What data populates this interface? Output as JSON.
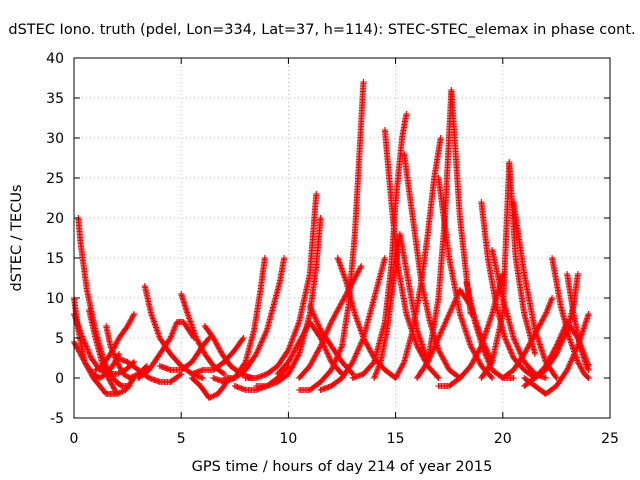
{
  "chart_data": {
    "type": "scatter",
    "title": "dSTEC Iono. truth (pdel, Lon=334, Lat=37, h=114): STEC-STEC_elemax in phase cont.",
    "xlabel": "GPS time / hours of day 214 of year 2015",
    "ylabel": "dSTEC  / TECUs",
    "xlim": [
      0,
      25
    ],
    "ylim": [
      -5,
      40
    ],
    "xticks": [
      0,
      5,
      10,
      15,
      20,
      25
    ],
    "yticks": [
      -5,
      0,
      5,
      10,
      15,
      20,
      25,
      30,
      35,
      40
    ],
    "grid": true,
    "marker": "plus",
    "color": "#ff0000",
    "arcs": [
      {
        "x": [
          0.0,
          0.2,
          0.5,
          0.9,
          1.2,
          1.5,
          1.9
        ],
        "y": [
          10,
          6,
          2,
          0,
          -1,
          -2,
          -2
        ]
      },
      {
        "x": [
          0.0,
          0.3,
          0.6,
          0.9,
          1.2,
          1.5,
          1.8,
          2.1
        ],
        "y": [
          4.5,
          3,
          1.5,
          0.5,
          0,
          0.5,
          1.5,
          3
        ]
      },
      {
        "x": [
          0.2,
          0.3,
          0.6,
          1.0,
          1.4,
          1.8,
          2.2,
          2.6
        ],
        "y": [
          20,
          17,
          11,
          6,
          2,
          0,
          -1,
          -1
        ]
      },
      {
        "x": [
          0.0,
          0.4,
          0.8,
          1.2,
          1.6,
          2.0,
          2.4,
          2.8
        ],
        "y": [
          8,
          5,
          2.5,
          1,
          0.5,
          0.5,
          1,
          2
        ]
      },
      {
        "x": [
          0.7,
          1.0,
          1.3,
          1.6,
          2.0,
          2.4,
          2.8
        ],
        "y": [
          8.5,
          5,
          2,
          0,
          -2,
          -1.5,
          0
        ]
      },
      {
        "x": [
          1.0,
          1.3,
          1.7,
          2.1,
          2.5,
          2.8
        ],
        "y": [
          1,
          1.5,
          3,
          5,
          6.5,
          8
        ]
      },
      {
        "x": [
          1.5,
          1.7,
          2.0,
          2.3,
          2.6,
          3.0,
          3.4
        ],
        "y": [
          6.5,
          4,
          2,
          0.5,
          0,
          0.5,
          1.5
        ]
      },
      {
        "x": [
          2.0,
          2.5,
          3.0,
          3.5,
          4.0,
          4.5,
          5.0
        ],
        "y": [
          2.5,
          2,
          1,
          0,
          -0.5,
          -0.5,
          0.5
        ]
      },
      {
        "x": [
          3.3,
          3.6,
          4.0,
          4.5,
          5.0,
          5.5,
          6.0
        ],
        "y": [
          11.5,
          8,
          5,
          3,
          1.5,
          0.5,
          0
        ]
      },
      {
        "x": [
          3.0,
          3.5,
          4.0,
          4.5,
          4.8,
          5.1,
          5.6
        ],
        "y": [
          0,
          1,
          3,
          5,
          7,
          7,
          5
        ]
      },
      {
        "x": [
          5.0,
          5.3,
          5.7,
          6.1,
          6.5,
          7.0
        ],
        "y": [
          10.5,
          8,
          5,
          3,
          1.5,
          0.5
        ]
      },
      {
        "x": [
          4.0,
          4.5,
          5.0,
          5.5,
          6.0,
          6.3
        ],
        "y": [
          1.5,
          1,
          1,
          2,
          4,
          5
        ]
      },
      {
        "x": [
          5.5,
          5.9,
          6.3,
          6.7,
          7.0,
          7.2
        ],
        "y": [
          0,
          -1,
          -2.5,
          -2,
          -1,
          0
        ]
      },
      {
        "x": [
          6.1,
          6.5,
          6.9,
          7.3,
          7.8,
          8.3
        ],
        "y": [
          6.5,
          5,
          3,
          1.5,
          0.5,
          0
        ]
      },
      {
        "x": [
          5.5,
          6.0,
          6.5,
          7.0,
          7.5,
          7.9
        ],
        "y": [
          0.5,
          1,
          1,
          2,
          3.5,
          5
        ]
      },
      {
        "x": [
          6.5,
          7.0,
          7.5,
          8.0,
          8.4,
          8.7,
          8.9
        ],
        "y": [
          0,
          -0.5,
          0,
          2,
          6,
          11,
          15
        ]
      },
      {
        "x": [
          7.0,
          7.5,
          8.0,
          8.5,
          9.0,
          9.3,
          9.6,
          9.8
        ],
        "y": [
          0,
          0,
          1,
          3,
          6,
          9,
          12,
          15
        ]
      },
      {
        "x": [
          7.5,
          8.0,
          8.5,
          9.0,
          9.5,
          10.0
        ],
        "y": [
          -1,
          -1.5,
          -1.5,
          -1,
          0,
          1.5
        ]
      },
      {
        "x": [
          8.0,
          8.5,
          9.0,
          9.5,
          10.0,
          10.5,
          11.0,
          11.3
        ],
        "y": [
          0,
          0,
          0.5,
          1.5,
          3.5,
          7,
          13,
          23
        ]
      },
      {
        "x": [
          8.5,
          9.0,
          9.5,
          10.0,
          10.5,
          11.0,
          11.3,
          11.5
        ],
        "y": [
          -1,
          -1,
          -0.5,
          0.5,
          3,
          8,
          14,
          20
        ]
      },
      {
        "x": [
          9.5,
          10.0,
          10.5,
          11.0,
          11.5,
          12.0,
          12.5
        ],
        "y": [
          0.5,
          2,
          4.5,
          7,
          5,
          2,
          0.5
        ]
      },
      {
        "x": [
          10.5,
          11.0,
          11.5,
          12.0,
          12.5,
          13.0,
          13.4
        ],
        "y": [
          0,
          1.5,
          4,
          7,
          9.5,
          12,
          14
        ]
      },
      {
        "x": [
          11.0,
          11.5,
          12.0,
          12.5,
          13.0
        ],
        "y": [
          9,
          6,
          4,
          2,
          0.5
        ]
      },
      {
        "x": [
          10.5,
          11.0,
          11.5,
          12.0,
          12.5,
          12.8,
          13.1,
          13.5
        ],
        "y": [
          -1.5,
          -1.5,
          -0.5,
          1,
          4,
          9,
          18,
          37
        ]
      },
      {
        "x": [
          11.5,
          12.0,
          12.5,
          13.0,
          13.5,
          14.0,
          14.5
        ],
        "y": [
          -1.5,
          -1,
          0,
          2,
          5,
          10,
          15
        ]
      },
      {
        "x": [
          12.3,
          12.7,
          13.1,
          13.5,
          14.0,
          14.5,
          15.0
        ],
        "y": [
          15,
          12,
          8,
          5,
          2.5,
          1,
          0
        ]
      },
      {
        "x": [
          13.0,
          13.5,
          14.0,
          14.5,
          14.8,
          15.0,
          15.3,
          15.5
        ],
        "y": [
          0,
          0.5,
          2,
          7,
          14,
          22,
          30,
          33
        ]
      },
      {
        "x": [
          14.0,
          14.3,
          14.6,
          14.9,
          15.2,
          15.6,
          16.0,
          16.5
        ],
        "y": [
          0,
          2,
          6,
          12,
          18,
          12,
          6,
          2
        ]
      },
      {
        "x": [
          14.5,
          14.8,
          15.1,
          15.5,
          16.0,
          16.5,
          17.0
        ],
        "y": [
          31,
          22,
          14,
          8,
          4,
          1.5,
          0
        ]
      },
      {
        "x": [
          15.0,
          15.4,
          15.8,
          16.2,
          16.5,
          16.8,
          17.1
        ],
        "y": [
          0,
          2,
          6,
          12,
          18,
          25,
          30
        ]
      },
      {
        "x": [
          15.4,
          15.8,
          16.2,
          16.6,
          17.0,
          17.5,
          18.0
        ],
        "y": [
          28,
          20,
          12,
          7,
          3.5,
          1,
          0
        ]
      },
      {
        "x": [
          16.0,
          16.5,
          17.0,
          17.3,
          17.6,
          18.0,
          18.5
        ],
        "y": [
          0,
          2,
          10,
          20,
          36,
          20,
          8
        ]
      },
      {
        "x": [
          17.0,
          17.5,
          18.0,
          18.5,
          19.0,
          19.5
        ],
        "y": [
          25,
          15,
          8,
          4,
          1.5,
          0
        ]
      },
      {
        "x": [
          17.0,
          17.5,
          18.0,
          18.5,
          19.0,
          19.5,
          20.0
        ],
        "y": [
          -1,
          -1,
          0,
          1.5,
          4,
          8,
          13
        ]
      },
      {
        "x": [
          16.5,
          17.0,
          17.5,
          18.0,
          18.5,
          19.0,
          19.5
        ],
        "y": [
          2,
          5,
          8,
          11,
          9,
          5,
          2
        ]
      },
      {
        "x": [
          18.3,
          18.7,
          19.1,
          19.5,
          20.0,
          20.5
        ],
        "y": [
          12,
          7,
          3.5,
          1,
          0,
          0
        ]
      },
      {
        "x": [
          19.0,
          19.3,
          19.7,
          20.1,
          20.5,
          21.0,
          21.5
        ],
        "y": [
          22,
          15,
          9,
          5,
          2.5,
          1,
          0
        ]
      },
      {
        "x": [
          19.0,
          19.5,
          20.0,
          20.3,
          20.6,
          21.0,
          21.5
        ],
        "y": [
          0,
          2,
          8,
          27,
          15,
          8,
          3
        ]
      },
      {
        "x": [
          19.5,
          20.0,
          20.5,
          21.0,
          21.5,
          22.0
        ],
        "y": [
          16,
          10,
          5,
          2,
          0.5,
          0
        ]
      },
      {
        "x": [
          20.5,
          21.0,
          21.5,
          22.0,
          22.5
        ],
        "y": [
          22,
          13,
          6,
          2,
          0
        ]
      },
      {
        "x": [
          20.0,
          20.5,
          21.0,
          21.5,
          22.0,
          22.3
        ],
        "y": [
          0,
          1,
          3,
          5.5,
          8,
          10
        ]
      },
      {
        "x": [
          21.0,
          21.5,
          22.0,
          22.5,
          23.0,
          23.5,
          24.0
        ],
        "y": [
          0,
          -1,
          -2,
          -1,
          1,
          4,
          8
        ]
      },
      {
        "x": [
          21.0,
          21.5,
          22.0,
          22.5,
          23.0,
          23.3,
          23.5
        ],
        "y": [
          -1,
          0,
          1,
          3,
          6,
          9,
          13
        ]
      },
      {
        "x": [
          22.3,
          22.7,
          23.1,
          23.5,
          23.8,
          24.0
        ],
        "y": [
          15,
          9,
          5,
          2,
          0.5,
          0
        ]
      },
      {
        "x": [
          21.5,
          22.0,
          22.5,
          23.0,
          23.5,
          24.0
        ],
        "y": [
          0,
          1.5,
          4,
          7,
          5,
          1.5
        ]
      },
      {
        "x": [
          23.0,
          23.3,
          23.6,
          23.9,
          24.0
        ],
        "y": [
          13,
          8,
          4,
          1.5,
          1
        ]
      }
    ]
  }
}
